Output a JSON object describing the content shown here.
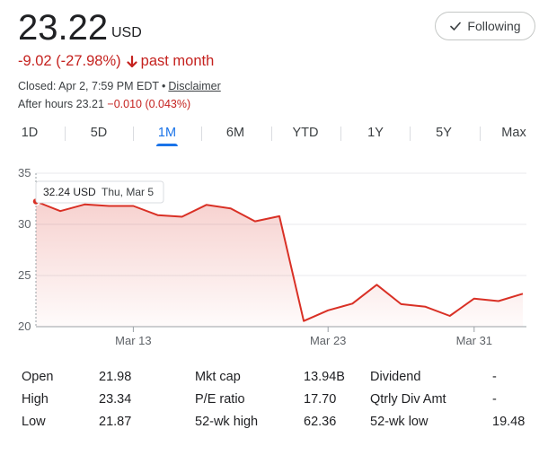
{
  "header": {
    "price": "23.22",
    "currency": "USD",
    "change": "-9.02 (-27.98%)",
    "change_period": "past month",
    "closed_text": "Closed: Apr 2, 7:59 PM EDT",
    "disclaimer": "Disclaimer",
    "after_hours_label": "After hours 23.21",
    "after_hours_change": "−0.010 (0.043%)",
    "follow_label": "Following"
  },
  "tabs": [
    "1D",
    "5D",
    "1M",
    "6M",
    "YTD",
    "1Y",
    "5Y",
    "Max"
  ],
  "active_tab": "1M",
  "tooltip": {
    "price": "32.24 USD",
    "date": "Thu, Mar 5"
  },
  "colors": {
    "negative": "#c5221f",
    "accent": "#1a73e8",
    "line": "#d93025"
  },
  "chart_data": {
    "type": "area",
    "ylim": [
      20,
      35
    ],
    "yticks": [
      "35",
      "30",
      "25",
      "20"
    ],
    "xtick_labels": [
      "Mar 13",
      "Mar 23",
      "Mar 31"
    ],
    "series": [
      {
        "values": [
          32.24,
          31.3,
          31.95,
          31.8,
          31.8,
          30.9,
          30.75,
          31.9,
          31.55,
          30.3,
          30.8,
          20.55,
          21.6,
          22.25,
          24.1,
          22.2,
          21.95,
          21.05,
          22.75,
          22.5,
          23.22
        ]
      }
    ]
  },
  "stats": [
    [
      {
        "label": "Open",
        "value": "21.98"
      },
      {
        "label": "Mkt cap",
        "value": "13.94B"
      },
      {
        "label": "Dividend",
        "value": "-"
      }
    ],
    [
      {
        "label": "High",
        "value": "23.34"
      },
      {
        "label": "P/E ratio",
        "value": "17.70"
      },
      {
        "label": "Qtrly Div Amt",
        "value": "-"
      }
    ],
    [
      {
        "label": "Low",
        "value": "21.87"
      },
      {
        "label": "52-wk high",
        "value": "62.36"
      },
      {
        "label": "52-wk low",
        "value": "19.48"
      }
    ]
  ]
}
